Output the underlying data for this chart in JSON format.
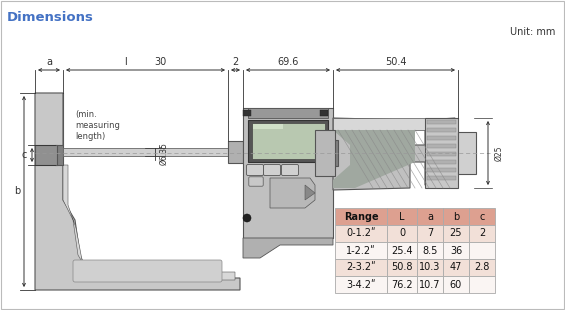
{
  "title": "Dimensions",
  "unit_label": "Unit: mm",
  "bg_color": "#ffffff",
  "border_color": "#bbbbbb",
  "title_color": "#4472c4",
  "table": {
    "headers": [
      "Range",
      "L",
      "a",
      "b",
      "c"
    ],
    "rows": [
      [
        "0-1.2ʺ",
        "0",
        "7",
        "25",
        "2"
      ],
      [
        "1-2.2ʺ",
        "25.4",
        "8.5",
        "36",
        ""
      ],
      [
        "2-3.2ʺ",
        "50.8",
        "10.3",
        "47",
        "2.8"
      ],
      [
        "3-4.2ʺ",
        "76.2",
        "10.7",
        "60",
        ""
      ]
    ],
    "header_bg": "#dda090",
    "row_bg_alt": "#f2e0d8",
    "row_bg_norm": "#faf5f3",
    "border_color": "#aaaaaa"
  },
  "dim_labels": {
    "top": [
      "a",
      "l",
      "30",
      "2",
      "69.6",
      "50.4"
    ],
    "left": [
      "b",
      "c"
    ],
    "side": [
      "Ø25",
      "Ø6.35"
    ]
  },
  "annotation": "(min.\nmeasuring\nlength)"
}
